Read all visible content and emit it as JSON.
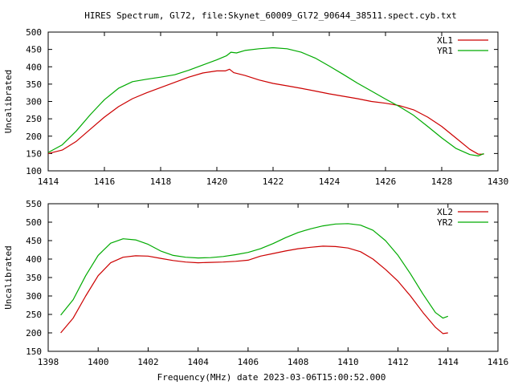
{
  "title": "HIRES Spectrum, Gl72, file:Skynet_60009_Gl72_90644_38511.spect.cyb.txt",
  "xlabel_bottom": "Frequency(MHz) date 2023-03-06T15:00:52.000",
  "colors": {
    "red": "#cc0000",
    "green": "#00aa00",
    "frame": "#000000"
  },
  "chart_data": [
    {
      "type": "line",
      "title": "",
      "xlabel": "",
      "ylabel": "Uncalibrated",
      "xlim": [
        1414,
        1430
      ],
      "ylim": [
        100,
        500
      ],
      "xticks": [
        1414,
        1416,
        1418,
        1420,
        1422,
        1424,
        1426,
        1428,
        1430
      ],
      "yticks": [
        100,
        150,
        200,
        250,
        300,
        350,
        400,
        450,
        500
      ],
      "legend_position": "top-right",
      "grid": false,
      "series": [
        {
          "name": "XL1",
          "color": "#cc0000",
          "points": [
            [
              1414.0,
              150
            ],
            [
              1414.5,
              160
            ],
            [
              1415.0,
              185
            ],
            [
              1415.5,
              220
            ],
            [
              1416.0,
              255
            ],
            [
              1416.5,
              285
            ],
            [
              1417.0,
              308
            ],
            [
              1417.5,
              325
            ],
            [
              1418.0,
              340
            ],
            [
              1418.5,
              355
            ],
            [
              1419.0,
              370
            ],
            [
              1419.5,
              382
            ],
            [
              1420.0,
              388
            ],
            [
              1420.3,
              388
            ],
            [
              1420.45,
              393
            ],
            [
              1420.6,
              383
            ],
            [
              1421.0,
              375
            ],
            [
              1421.5,
              362
            ],
            [
              1422.0,
              352
            ],
            [
              1422.5,
              345
            ],
            [
              1423.0,
              338
            ],
            [
              1423.5,
              330
            ],
            [
              1424.0,
              322
            ],
            [
              1424.5,
              315
            ],
            [
              1425.0,
              308
            ],
            [
              1425.5,
              300
            ],
            [
              1426.0,
              295
            ],
            [
              1426.5,
              288
            ],
            [
              1427.0,
              276
            ],
            [
              1427.5,
              255
            ],
            [
              1428.0,
              228
            ],
            [
              1428.5,
              195
            ],
            [
              1429.0,
              162
            ],
            [
              1429.3,
              148
            ],
            [
              1429.5,
              148
            ]
          ]
        },
        {
          "name": "YR1",
          "color": "#00aa00",
          "points": [
            [
              1414.0,
              153
            ],
            [
              1414.5,
              175
            ],
            [
              1415.0,
              215
            ],
            [
              1415.5,
              262
            ],
            [
              1416.0,
              305
            ],
            [
              1416.5,
              338
            ],
            [
              1417.0,
              357
            ],
            [
              1417.5,
              364
            ],
            [
              1418.0,
              370
            ],
            [
              1418.5,
              377
            ],
            [
              1419.0,
              390
            ],
            [
              1419.5,
              405
            ],
            [
              1420.0,
              420
            ],
            [
              1420.35,
              432
            ],
            [
              1420.5,
              442
            ],
            [
              1420.7,
              440
            ],
            [
              1421.0,
              447
            ],
            [
              1421.5,
              452
            ],
            [
              1422.0,
              455
            ],
            [
              1422.5,
              452
            ],
            [
              1423.0,
              442
            ],
            [
              1423.5,
              425
            ],
            [
              1424.0,
              402
            ],
            [
              1424.5,
              378
            ],
            [
              1425.0,
              353
            ],
            [
              1425.5,
              330
            ],
            [
              1426.0,
              307
            ],
            [
              1426.5,
              285
            ],
            [
              1427.0,
              260
            ],
            [
              1427.5,
              228
            ],
            [
              1428.0,
              195
            ],
            [
              1428.5,
              165
            ],
            [
              1429.0,
              147
            ],
            [
              1429.3,
              143
            ],
            [
              1429.5,
              150
            ]
          ]
        }
      ]
    },
    {
      "type": "line",
      "title": "",
      "xlabel": "",
      "ylabel": "Uncalibrated",
      "xlim": [
        1398,
        1416
      ],
      "ylim": [
        150,
        550
      ],
      "xticks": [
        1398,
        1400,
        1402,
        1404,
        1406,
        1408,
        1410,
        1412,
        1414,
        1416
      ],
      "yticks": [
        150,
        200,
        250,
        300,
        350,
        400,
        450,
        500,
        550
      ],
      "legend_position": "top-right",
      "grid": false,
      "series": [
        {
          "name": "XL2",
          "color": "#cc0000",
          "points": [
            [
              1398.5,
              200
            ],
            [
              1399.0,
              240
            ],
            [
              1399.5,
              300
            ],
            [
              1400.0,
              355
            ],
            [
              1400.5,
              390
            ],
            [
              1401.0,
              405
            ],
            [
              1401.5,
              409
            ],
            [
              1402.0,
              408
            ],
            [
              1402.5,
              402
            ],
            [
              1403.0,
              396
            ],
            [
              1403.5,
              392
            ],
            [
              1404.0,
              390
            ],
            [
              1404.5,
              391
            ],
            [
              1405.0,
              392
            ],
            [
              1405.5,
              394
            ],
            [
              1406.0,
              397
            ],
            [
              1406.5,
              408
            ],
            [
              1407.0,
              415
            ],
            [
              1407.5,
              422
            ],
            [
              1408.0,
              428
            ],
            [
              1408.5,
              432
            ],
            [
              1409.0,
              435
            ],
            [
              1409.5,
              434
            ],
            [
              1410.0,
              430
            ],
            [
              1410.5,
              420
            ],
            [
              1411.0,
              400
            ],
            [
              1411.5,
              372
            ],
            [
              1412.0,
              340
            ],
            [
              1412.5,
              300
            ],
            [
              1413.0,
              255
            ],
            [
              1413.5,
              215
            ],
            [
              1413.8,
              198
            ],
            [
              1414.0,
              200
            ]
          ]
        },
        {
          "name": "YR2",
          "color": "#00aa00",
          "points": [
            [
              1398.5,
              248
            ],
            [
              1399.0,
              290
            ],
            [
              1399.5,
              355
            ],
            [
              1400.0,
              410
            ],
            [
              1400.5,
              443
            ],
            [
              1401.0,
              455
            ],
            [
              1401.5,
              452
            ],
            [
              1402.0,
              440
            ],
            [
              1402.5,
              422
            ],
            [
              1403.0,
              410
            ],
            [
              1403.5,
              405
            ],
            [
              1404.0,
              403
            ],
            [
              1404.5,
              404
            ],
            [
              1405.0,
              407
            ],
            [
              1405.5,
              412
            ],
            [
              1406.0,
              418
            ],
            [
              1406.5,
              428
            ],
            [
              1407.0,
              442
            ],
            [
              1407.5,
              458
            ],
            [
              1408.0,
              472
            ],
            [
              1408.5,
              482
            ],
            [
              1409.0,
              490
            ],
            [
              1409.5,
              495
            ],
            [
              1410.0,
              496
            ],
            [
              1410.5,
              492
            ],
            [
              1411.0,
              478
            ],
            [
              1411.5,
              450
            ],
            [
              1412.0,
              410
            ],
            [
              1412.5,
              360
            ],
            [
              1413.0,
              305
            ],
            [
              1413.5,
              255
            ],
            [
              1413.8,
              240
            ],
            [
              1414.0,
              245
            ]
          ]
        }
      ]
    }
  ]
}
